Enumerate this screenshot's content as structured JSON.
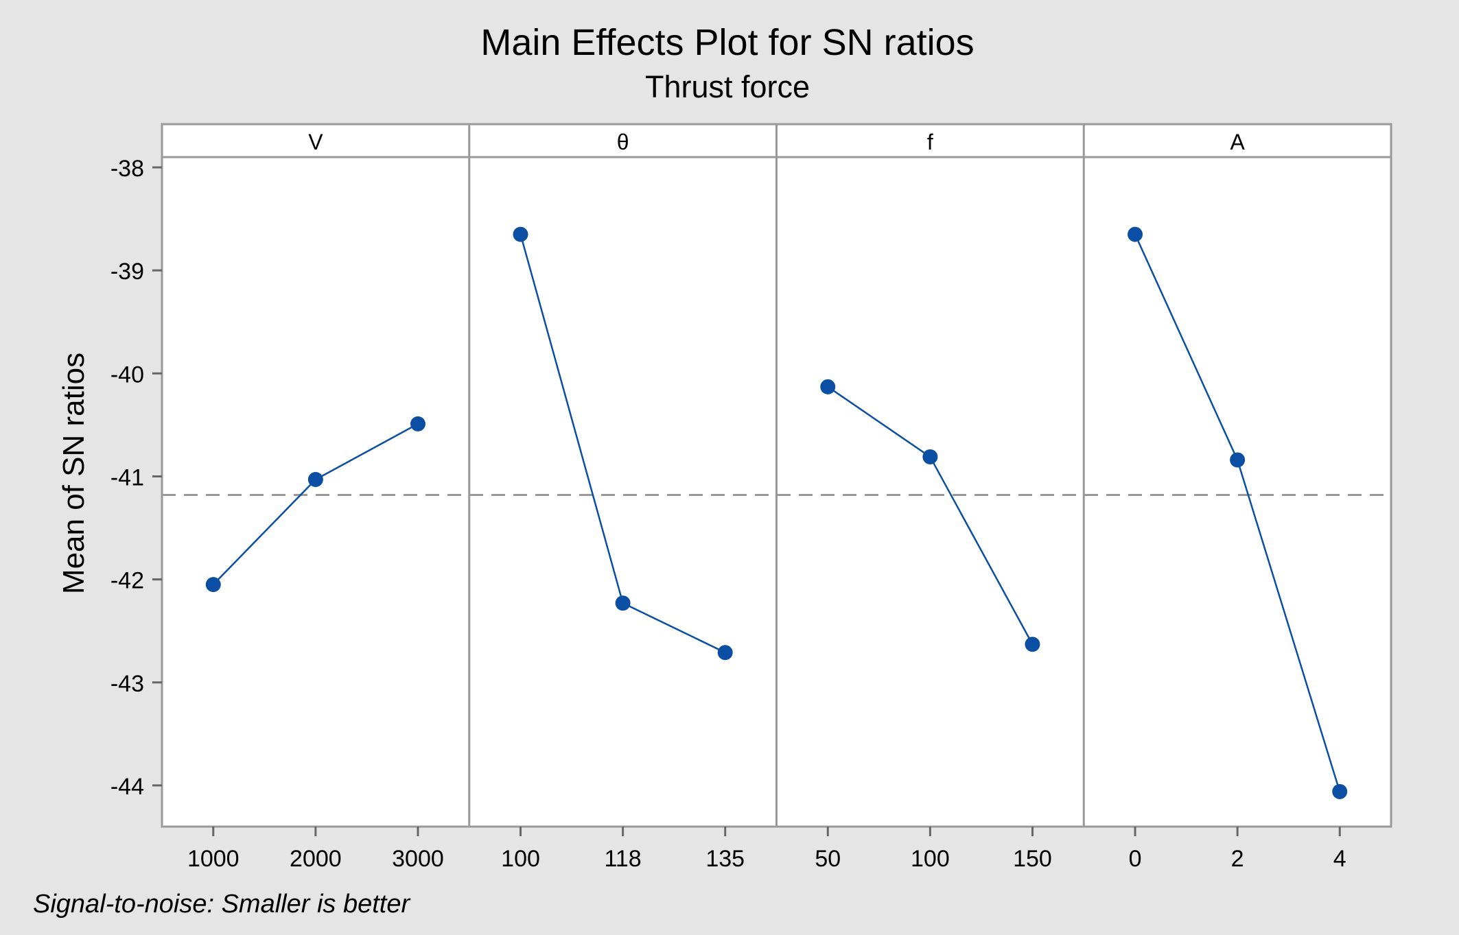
{
  "chart_data": {
    "type": "line",
    "title": "Main Effects Plot for SN ratios",
    "subtitle": "Thrust force",
    "ylabel": "Mean of SN ratios",
    "footnote": "Signal-to-noise: Smaller is better",
    "ylim": [
      -44.4,
      -37.9
    ],
    "yticks": [
      -38,
      -39,
      -40,
      -41,
      -42,
      -43,
      -44
    ],
    "reference_line": -41.18,
    "colors": {
      "series": "#0a4fa3",
      "reference": "#999999",
      "frame": "#999999",
      "background": "#e5e5e5",
      "panel": "#ffffff"
    },
    "panels": [
      {
        "name": "V",
        "x": [
          "1000",
          "2000",
          "3000"
        ],
        "values": [
          -42.05,
          -41.03,
          -40.49
        ]
      },
      {
        "name": "θ",
        "x": [
          "100",
          "118",
          "135"
        ],
        "values": [
          -38.65,
          -42.23,
          -42.71
        ]
      },
      {
        "name": "f",
        "x": [
          "50",
          "100",
          "150"
        ],
        "values": [
          -40.13,
          -40.81,
          -42.63
        ]
      },
      {
        "name": "A",
        "x": [
          "0",
          "2",
          "4"
        ],
        "values": [
          -38.65,
          -40.84,
          -44.06
        ]
      }
    ]
  }
}
